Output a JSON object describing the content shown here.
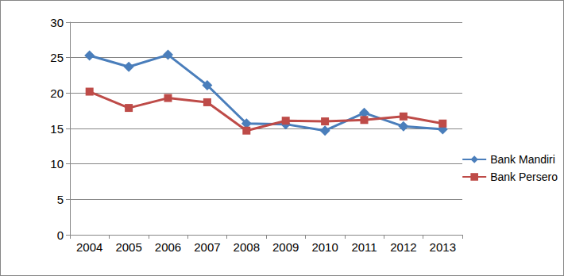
{
  "chart_data": {
    "type": "line",
    "categories": [
      "2004",
      "2005",
      "2006",
      "2007",
      "2008",
      "2009",
      "2010",
      "2011",
      "2012",
      "2013"
    ],
    "series": [
      {
        "name": "Bank Mandiri",
        "color": "#4a7ebb",
        "marker": "diamond",
        "values": [
          25.3,
          23.7,
          25.4,
          21.1,
          15.7,
          15.6,
          14.7,
          17.2,
          15.3,
          14.9
        ]
      },
      {
        "name": "Bank Persero",
        "color": "#be4b48",
        "marker": "square",
        "values": [
          20.2,
          17.9,
          19.3,
          18.7,
          14.7,
          16.1,
          16.0,
          16.2,
          16.7,
          15.7
        ]
      }
    ],
    "ylim": [
      0,
      30
    ],
    "yticks": [
      0,
      5,
      10,
      15,
      20,
      25,
      30
    ],
    "grid": true,
    "legend": "right"
  }
}
